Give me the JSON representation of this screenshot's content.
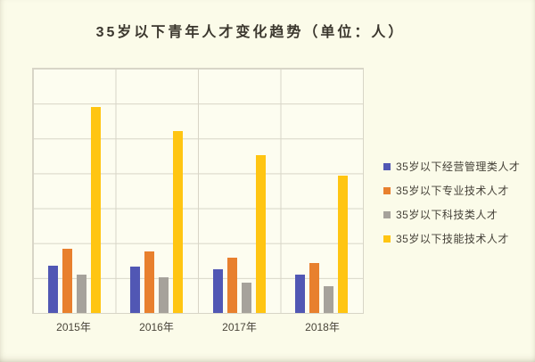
{
  "colors": {
    "card_background": "#fbfbe9",
    "plot_background": "#fdfdf0",
    "gridline": "#d8d5c7",
    "title_text": "#3b372e",
    "axis_text": "#494539",
    "legend_text": "#454138"
  },
  "chart_data": {
    "type": "bar",
    "title": "35岁以下青年人才变化趋势（单位：人）",
    "categories": [
      "2015年",
      "2016年",
      "2017年",
      "2018年"
    ],
    "series": [
      {
        "name": "35岁以下经营管理类人才",
        "color": "#5157b4",
        "values": [
          1.36,
          1.32,
          1.26,
          1.09
        ]
      },
      {
        "name": "35岁以下专业技术人才",
        "color": "#e8802e",
        "values": [
          1.83,
          1.77,
          1.59,
          1.42
        ]
      },
      {
        "name": "35岁以下科技类人才",
        "color": "#a6a29b",
        "values": [
          1.09,
          1.02,
          0.88,
          0.77
        ]
      },
      {
        "name": "35岁以下技能技术人才",
        "color": "#ffc512",
        "values": [
          5.91,
          5.21,
          4.53,
          3.94
        ]
      }
    ],
    "xlabel": "",
    "ylabel": "",
    "ylim": [
      0,
      7
    ],
    "value_units": "gridline intervals (no numeric y-axis labels shown in image)",
    "grid": {
      "horizontal_intervals": 7,
      "vertical_intervals": 4,
      "visible": true
    },
    "legend_position": "right"
  }
}
